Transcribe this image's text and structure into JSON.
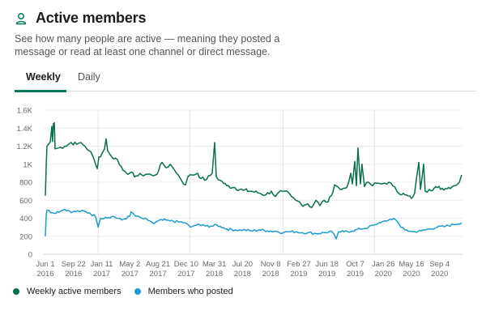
{
  "header": {
    "icon": "person-icon",
    "title": "Active members",
    "description": "See how many people are active — meaning they posted a message or read at least one channel or direct message."
  },
  "tabs": [
    {
      "label": "Weekly",
      "active": true
    },
    {
      "label": "Daily",
      "active": false
    }
  ],
  "colors": {
    "accent": "#007a5a",
    "weekly_active": "#0b6e4f",
    "posted": "#1e9bd0",
    "grid": "#e8e8e8"
  },
  "chart_data": {
    "type": "line",
    "title": "Active members",
    "xlabel": "",
    "ylabel": "",
    "x_unit": "weeks since Jun 1 2016",
    "xlim": [
      0,
      237
    ],
    "ylim": [
      0,
      1600
    ],
    "grid": true,
    "legend_position": "bottom-left",
    "y_ticks": [
      {
        "value": 0,
        "label": "0"
      },
      {
        "value": 200,
        "label": "200"
      },
      {
        "value": 400,
        "label": "400"
      },
      {
        "value": 600,
        "label": "600"
      },
      {
        "value": 800,
        "label": "800"
      },
      {
        "value": 1000,
        "label": "1K"
      },
      {
        "value": 1200,
        "label": "1.2K"
      },
      {
        "value": 1400,
        "label": "1.4K"
      },
      {
        "value": 1600,
        "label": "1.6K"
      }
    ],
    "x_ticks": [
      {
        "week": 0,
        "line1": "Jun 1",
        "line2": "2016"
      },
      {
        "week": 16,
        "line1": "Sep 22",
        "line2": "2016"
      },
      {
        "week": 32,
        "line1": "Jan 11",
        "line2": "2017"
      },
      {
        "week": 48,
        "line1": "May 2",
        "line2": "2017"
      },
      {
        "week": 64,
        "line1": "Aug 21",
        "line2": "2017"
      },
      {
        "week": 80,
        "line1": "Dec 10",
        "line2": "2017"
      },
      {
        "week": 96,
        "line1": "Mar 31",
        "line2": "2018"
      },
      {
        "week": 112,
        "line1": "Jul 20",
        "line2": "2018"
      },
      {
        "week": 128,
        "line1": "Nov 8",
        "line2": "2018"
      },
      {
        "week": 144,
        "line1": "Feb 27",
        "line2": "2019"
      },
      {
        "week": 160,
        "line1": "Jun 18",
        "line2": "2019"
      },
      {
        "week": 176,
        "line1": "Oct 7",
        "line2": "2019"
      },
      {
        "week": 192,
        "line1": "Jan 26",
        "line2": "2020"
      },
      {
        "week": 208,
        "line1": "May 16",
        "line2": "2020"
      },
      {
        "week": 224,
        "line1": "Sep 4",
        "line2": "2020"
      }
    ],
    "vertical_gridlines_weeks": [
      30,
      82,
      135,
      187
    ],
    "series": [
      {
        "name": "Weekly active members",
        "color": "#0b6e4f",
        "points": [
          [
            0,
            650
          ],
          [
            0.5,
            1000
          ],
          [
            0.9,
            1200
          ],
          [
            1.8,
            1220
          ],
          [
            2.8,
            1250
          ],
          [
            3.7,
            1420
          ],
          [
            4.1,
            1250
          ],
          [
            4.6,
            1450
          ],
          [
            5.1,
            1460
          ],
          [
            5.5,
            1170
          ],
          [
            7.4,
            1180
          ],
          [
            11,
            1200
          ],
          [
            14.7,
            1240
          ],
          [
            17.9,
            1220
          ],
          [
            20.2,
            1240
          ],
          [
            22.5,
            1200
          ],
          [
            24.9,
            1150
          ],
          [
            26.7,
            1100
          ],
          [
            28.5,
            1000
          ],
          [
            29.5,
            950
          ],
          [
            30.4,
            1080
          ],
          [
            32.2,
            1120
          ],
          [
            33.6,
            1170
          ],
          [
            34.5,
            1280
          ],
          [
            35.4,
            1150
          ],
          [
            37.7,
            1080
          ],
          [
            41,
            1050
          ],
          [
            44.2,
            930
          ],
          [
            47.9,
            900
          ],
          [
            51.5,
            870
          ],
          [
            54.8,
            880
          ],
          [
            57.5,
            890
          ],
          [
            60.3,
            880
          ],
          [
            62.6,
            880
          ],
          [
            64.4,
            930
          ],
          [
            66.3,
            1020
          ],
          [
            68.6,
            960
          ],
          [
            70.9,
            1000
          ],
          [
            73.2,
            940
          ],
          [
            75.5,
            880
          ],
          [
            77.3,
            820
          ],
          [
            79.6,
            770
          ],
          [
            81,
            860
          ],
          [
            83.3,
            880
          ],
          [
            86.5,
            900
          ],
          [
            88.4,
            840
          ],
          [
            91.6,
            830
          ],
          [
            94.8,
            900
          ],
          [
            96.2,
            1240
          ],
          [
            97.1,
            860
          ],
          [
            99.4,
            820
          ],
          [
            103.1,
            760
          ],
          [
            107.7,
            740
          ],
          [
            112.3,
            710
          ],
          [
            116.9,
            700
          ],
          [
            121.5,
            680
          ],
          [
            125.2,
            660
          ],
          [
            128.4,
            700
          ],
          [
            130.7,
            640
          ],
          [
            134.4,
            700
          ],
          [
            136.2,
            700
          ],
          [
            139.9,
            640
          ],
          [
            142.2,
            600
          ],
          [
            144.5,
            580
          ],
          [
            145.4,
            550
          ],
          [
            149.1,
            560
          ],
          [
            151.4,
            520
          ],
          [
            153.7,
            600
          ],
          [
            156,
            540
          ],
          [
            158.3,
            600
          ],
          [
            160.6,
            580
          ],
          [
            162.4,
            650
          ],
          [
            164.3,
            770
          ],
          [
            166.1,
            750
          ],
          [
            167.5,
            720
          ],
          [
            171.2,
            740
          ],
          [
            173.5,
            900
          ],
          [
            174.4,
            780
          ],
          [
            175.8,
            1030
          ],
          [
            176.7,
            760
          ],
          [
            177.6,
            1180
          ],
          [
            179,
            780
          ],
          [
            179.9,
            1000
          ],
          [
            181.3,
            750
          ],
          [
            183.6,
            800
          ],
          [
            185.9,
            760
          ],
          [
            188.2,
            790
          ],
          [
            190.5,
            780
          ],
          [
            192.8,
            790
          ],
          [
            195.1,
            800
          ],
          [
            197.4,
            760
          ],
          [
            199.7,
            700
          ],
          [
            204.3,
            660
          ],
          [
            208,
            620
          ],
          [
            209.8,
            680
          ],
          [
            212.2,
            1020
          ],
          [
            213.1,
            720
          ],
          [
            214.9,
            1000
          ],
          [
            215.8,
            700
          ],
          [
            218.1,
            720
          ],
          [
            222.7,
            740
          ],
          [
            227.3,
            730
          ],
          [
            231.9,
            760
          ],
          [
            235.2,
            800
          ],
          [
            236.5,
            880
          ]
        ]
      },
      {
        "name": "Members who posted",
        "color": "#1e9bd0",
        "points": [
          [
            0,
            200
          ],
          [
            0.5,
            440
          ],
          [
            0.9,
            490
          ],
          [
            4.1,
            460
          ],
          [
            8.7,
            480
          ],
          [
            11,
            500
          ],
          [
            15.6,
            470
          ],
          [
            20.2,
            480
          ],
          [
            24.9,
            460
          ],
          [
            28.5,
            420
          ],
          [
            30,
            300
          ],
          [
            31.3,
            400
          ],
          [
            34.1,
            410
          ],
          [
            38.7,
            420
          ],
          [
            43.3,
            380
          ],
          [
            47.9,
            420
          ],
          [
            48.8,
            470
          ],
          [
            51.5,
            420
          ],
          [
            54.8,
            400
          ],
          [
            59.4,
            370
          ],
          [
            61.7,
            340
          ],
          [
            64,
            370
          ],
          [
            68.6,
            380
          ],
          [
            70.9,
            370
          ],
          [
            75.5,
            360
          ],
          [
            79.2,
            350
          ],
          [
            82.4,
            300
          ],
          [
            84.7,
            320
          ],
          [
            89.3,
            330
          ],
          [
            93,
            300
          ],
          [
            96.2,
            330
          ],
          [
            99.4,
            310
          ],
          [
            103.1,
            280
          ],
          [
            107.7,
            270
          ],
          [
            112.3,
            270
          ],
          [
            116.9,
            260
          ],
          [
            121.5,
            270
          ],
          [
            126.1,
            260
          ],
          [
            130.7,
            255
          ],
          [
            135.3,
            240
          ],
          [
            137.6,
            250
          ],
          [
            142.2,
            250
          ],
          [
            145.4,
            240
          ],
          [
            149.1,
            240
          ],
          [
            153.7,
            230
          ],
          [
            158.3,
            240
          ],
          [
            162.9,
            250
          ],
          [
            165.2,
            170
          ],
          [
            166.6,
            250
          ],
          [
            169.8,
            250
          ],
          [
            174.4,
            260
          ],
          [
            179,
            280
          ],
          [
            183.6,
            300
          ],
          [
            185.9,
            320
          ],
          [
            188.2,
            330
          ],
          [
            190.5,
            350
          ],
          [
            192.8,
            370
          ],
          [
            195.1,
            380
          ],
          [
            197.9,
            400
          ],
          [
            199.7,
            370
          ],
          [
            202,
            300
          ],
          [
            204.3,
            270
          ],
          [
            208.9,
            250
          ],
          [
            213.5,
            260
          ],
          [
            218.1,
            280
          ],
          [
            222.7,
            300
          ],
          [
            227.3,
            310
          ],
          [
            231.9,
            330
          ],
          [
            236.5,
            350
          ]
        ]
      }
    ]
  },
  "legend": [
    {
      "label": "Weekly active members",
      "color": "#0b6e4f"
    },
    {
      "label": "Members who posted",
      "color": "#1e9bd0"
    }
  ]
}
